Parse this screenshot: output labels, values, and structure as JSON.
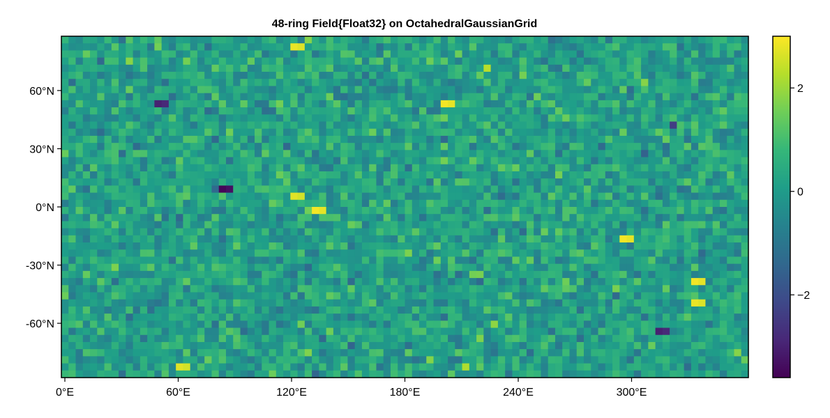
{
  "chart_data": {
    "type": "heatmap",
    "title": "48-ring Field{Float32} on OctahedralGaussianGrid",
    "colormap": "viridis",
    "colormap_stops": [
      "#440154",
      "#482878",
      "#3e4989",
      "#31688e",
      "#26828e",
      "#1f9e89",
      "#35b779",
      "#6ece58",
      "#b5de2b",
      "#fde725"
    ],
    "value_range": [
      -3.6,
      3.0
    ],
    "n_rings": 48,
    "grid_columns": 96,
    "x_range_deg": [
      0,
      360
    ],
    "y_range_deg": [
      -88,
      88
    ],
    "x_ticks": [
      {
        "value": 0,
        "label": "0°E"
      },
      {
        "value": 60,
        "label": "60°E"
      },
      {
        "value": 120,
        "label": "120°E"
      },
      {
        "value": 180,
        "label": "180°E"
      },
      {
        "value": 240,
        "label": "240°E"
      },
      {
        "value": 300,
        "label": "300°E"
      }
    ],
    "y_ticks": [
      {
        "value": 60,
        "label": "60°N"
      },
      {
        "value": 30,
        "label": "30°N"
      },
      {
        "value": 0,
        "label": "0°N"
      },
      {
        "value": -30,
        "label": "-30°N"
      },
      {
        "value": -60,
        "label": "-60°N"
      }
    ],
    "colorbar_ticks": [
      {
        "value": 2,
        "label": "2"
      },
      {
        "value": 0,
        "label": "0"
      },
      {
        "value": -2,
        "label": "−2"
      }
    ],
    "notable_cells": [
      {
        "lon": 122,
        "lat": 83,
        "value": 2.8
      },
      {
        "lon": 222,
        "lat": 71,
        "value": 2.3
      },
      {
        "lon": 200,
        "lat": 54,
        "value": 2.9
      },
      {
        "lon": 86,
        "lat": 10,
        "value": -3.5
      },
      {
        "lon": 134,
        "lat": -1,
        "value": 2.9
      },
      {
        "lon": 120,
        "lat": 6,
        "value": 2.7
      },
      {
        "lon": 296,
        "lat": -17,
        "value": 2.9
      },
      {
        "lon": 330,
        "lat": -39,
        "value": 2.9
      },
      {
        "lon": 330,
        "lat": -50,
        "value": 2.8
      },
      {
        "lon": 314,
        "lat": -65,
        "value": -3.0
      },
      {
        "lon": 60,
        "lat": -82,
        "value": 2.7
      },
      {
        "lon": 210,
        "lat": -82,
        "value": 2.2
      },
      {
        "lon": 52,
        "lat": 53,
        "value": -3.0
      },
      {
        "lon": 322,
        "lat": 42,
        "value": -2.4
      },
      {
        "lon": 240,
        "lat": 67,
        "value": 1.6
      }
    ]
  }
}
